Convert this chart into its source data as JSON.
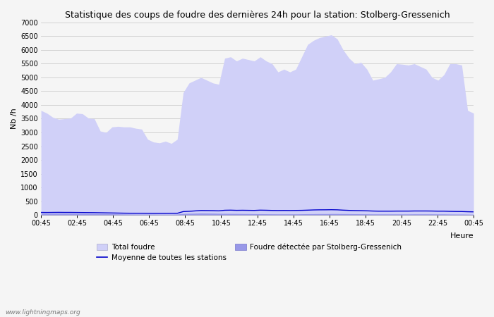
{
  "title": "Statistique des coups de foudre des dernières 24h pour la station: Stolberg-Gressenich",
  "xlabel": "Heure",
  "ylabel": "Nb /h",
  "ylim": [
    0,
    7000
  ],
  "yticks": [
    0,
    500,
    1000,
    1500,
    2000,
    2500,
    3000,
    3500,
    4000,
    4500,
    5000,
    5500,
    6000,
    6500,
    7000
  ],
  "x_labels": [
    "00:45",
    "02:45",
    "04:45",
    "06:45",
    "08:45",
    "10:45",
    "12:45",
    "14:45",
    "16:45",
    "18:45",
    "20:45",
    "22:45",
    "00:45"
  ],
  "background_color": "#f5f5f5",
  "plot_bg_color": "#f5f5f5",
  "grid_color": "#cccccc",
  "fill_color_total": "#d0d0f8",
  "fill_color_station": "#9898e8",
  "line_color_mean": "#0000cc",
  "watermark": "www.lightningmaps.org",
  "legend_total": "Total foudre",
  "legend_mean": "Moyenne de toutes les stations",
  "legend_station": "Foudre détectée par Stolberg-Gressenich",
  "total_foudre": [
    3800,
    3700,
    3550,
    3480,
    3500,
    3520,
    3700,
    3680,
    3520,
    3500,
    3050,
    3000,
    3200,
    3220,
    3200,
    3200,
    3150,
    3120,
    2750,
    2650,
    2620,
    2680,
    2600,
    2750,
    4450,
    4800,
    4900,
    5000,
    4900,
    4800,
    4750,
    5700,
    5750,
    5600,
    5700,
    5650,
    5600,
    5750,
    5600,
    5500,
    5200,
    5300,
    5200,
    5300,
    5750,
    6200,
    6350,
    6450,
    6500,
    6550,
    6400,
    6000,
    5700,
    5500,
    5550,
    5300,
    4900,
    4950,
    5000,
    5200,
    5500,
    5480,
    5450,
    5500,
    5400,
    5300,
    5000,
    4900,
    5100,
    5500,
    5500,
    5450,
    3800,
    3700
  ],
  "station_foudre": [
    60,
    55,
    55,
    58,
    55,
    55,
    52,
    50,
    48,
    45,
    42,
    40,
    38,
    35,
    32,
    30,
    28,
    28,
    28,
    28,
    25,
    25,
    25,
    28,
    50,
    55,
    60,
    65,
    62,
    60,
    55,
    52,
    50,
    48,
    46,
    44,
    42,
    40,
    38,
    36,
    35,
    35,
    35,
    35,
    38,
    40,
    42,
    44,
    44,
    46,
    46,
    44,
    42,
    40,
    38,
    36,
    33,
    33,
    33,
    33,
    33,
    33,
    33,
    35,
    35,
    35,
    35,
    33,
    33,
    30,
    28,
    28,
    25,
    22
  ],
  "mean_foudre": [
    90,
    88,
    90,
    92,
    90,
    90,
    88,
    86,
    84,
    82,
    78,
    74,
    70,
    66,
    62,
    60,
    58,
    58,
    56,
    54,
    54,
    54,
    56,
    58,
    120,
    130,
    145,
    160,
    158,
    155,
    148,
    168,
    172,
    165,
    168,
    165,
    162,
    172,
    168,
    162,
    160,
    162,
    160,
    162,
    165,
    172,
    180,
    184,
    185,
    188,
    184,
    172,
    163,
    158,
    155,
    148,
    140,
    135,
    135,
    135,
    138,
    138,
    138,
    142,
    142,
    142,
    140,
    135,
    135,
    128,
    124,
    122,
    115,
    110
  ]
}
